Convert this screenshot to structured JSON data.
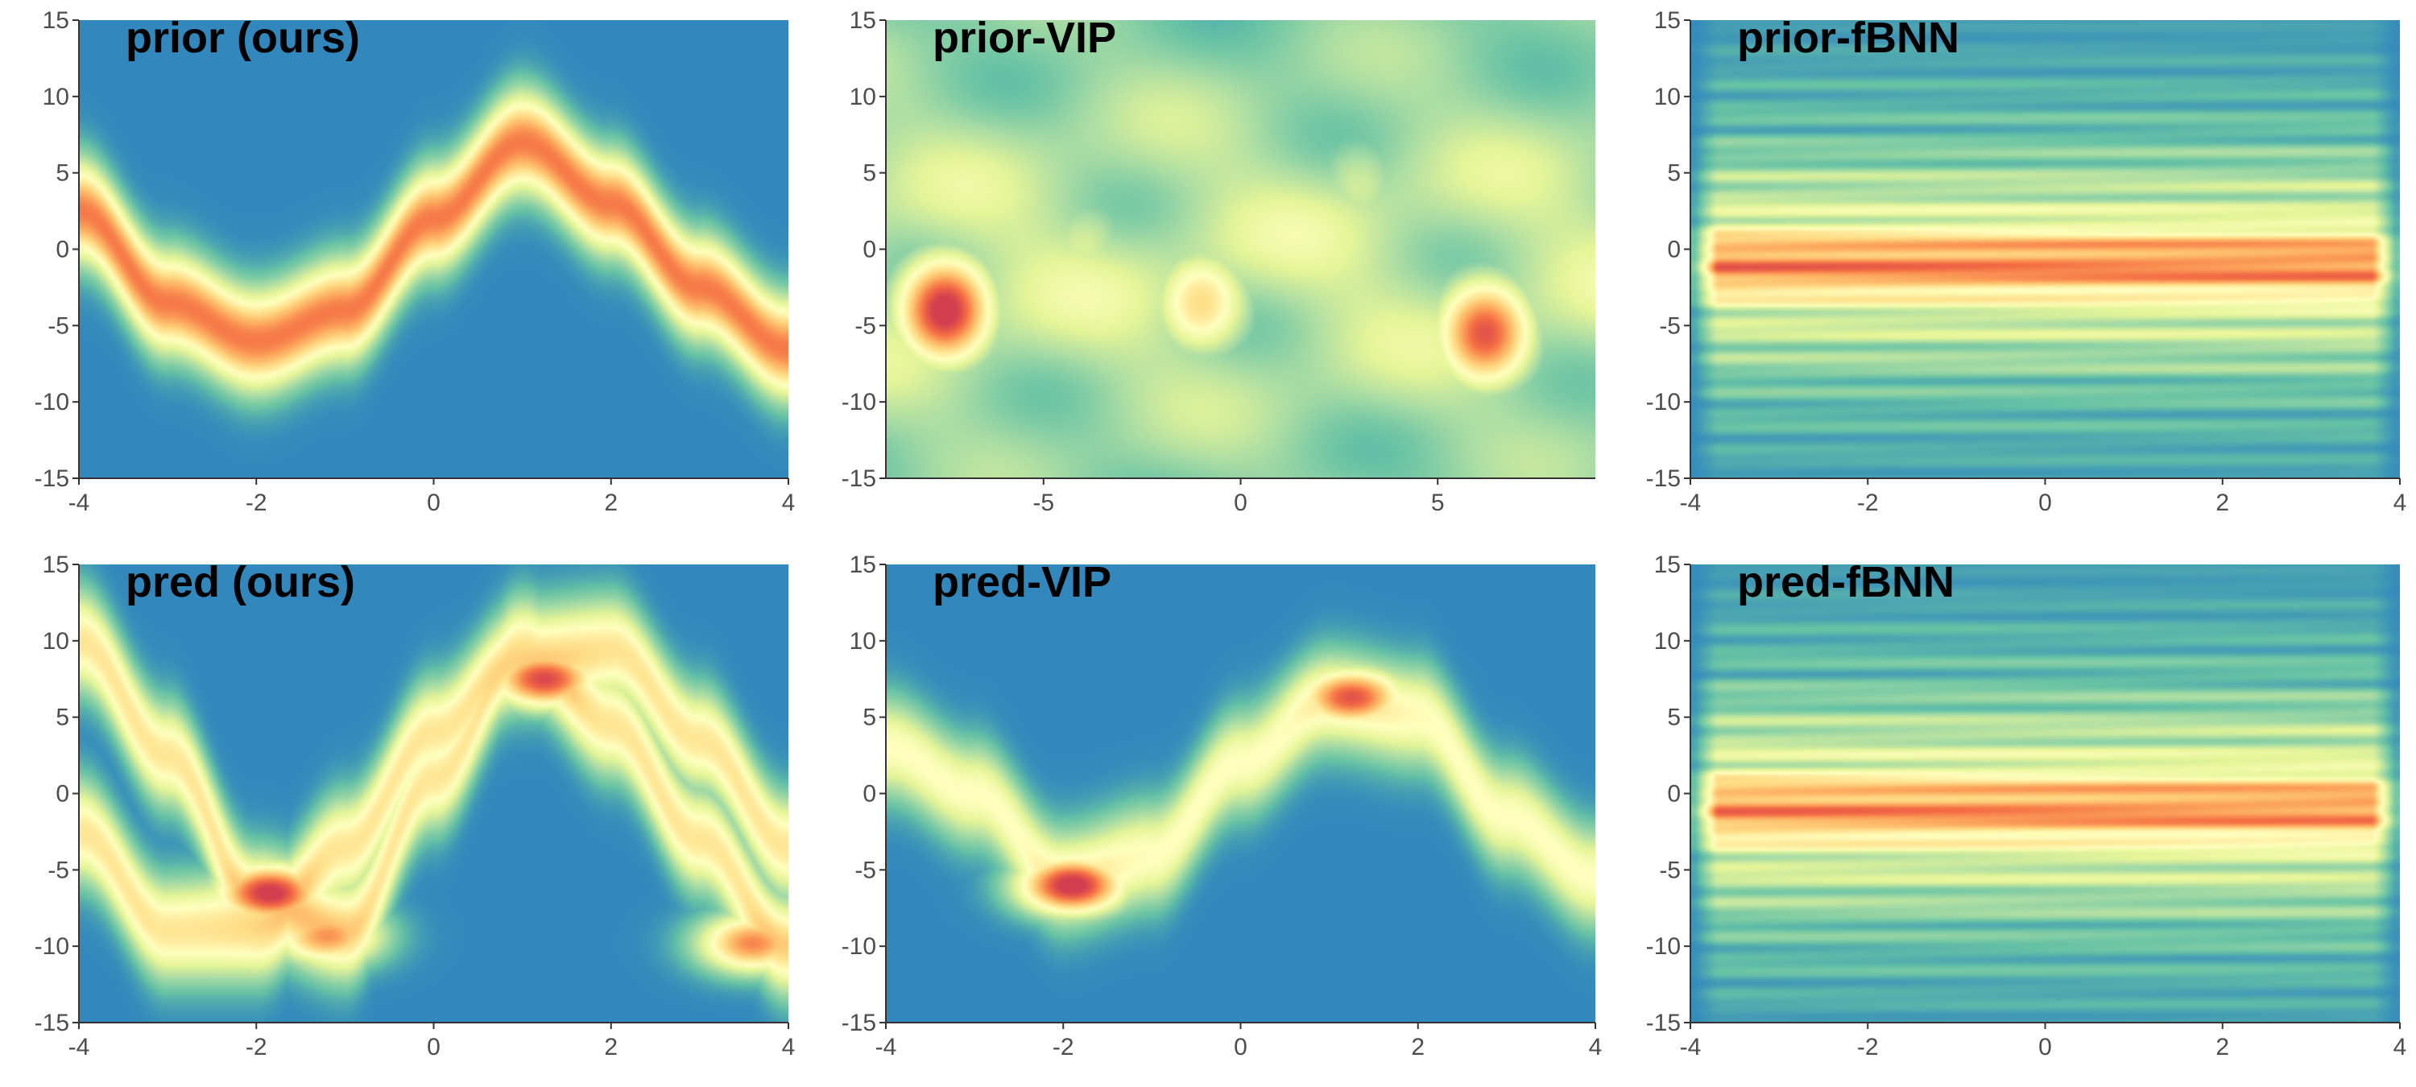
{
  "figure": {
    "colormap": [
      "#3288bd",
      "#66c2a5",
      "#abdda4",
      "#e6f598",
      "#ffffbf",
      "#fee08b",
      "#fdae61",
      "#f46d43",
      "#d53e4f"
    ],
    "background_color": "#3288bd"
  },
  "chart_data": [
    {
      "type": "heatmap",
      "title": "prior (ours)",
      "xlim": [
        -4,
        4
      ],
      "ylim": [
        -15,
        15
      ],
      "xticks": [
        -4,
        -2,
        0,
        2,
        4
      ],
      "yticks": [
        -15,
        -10,
        -5,
        0,
        5,
        10,
        15
      ],
      "density_ridges": [
        {
          "x": [
            -4,
            -3,
            -2,
            -1,
            0,
            1,
            2,
            3,
            4
          ],
          "y": [
            2.5,
            -3.5,
            -6.0,
            -4.0,
            2.0,
            7.0,
            3.0,
            -2.5,
            -6.5
          ],
          "peak": 0.85
        }
      ]
    },
    {
      "type": "heatmap",
      "title": "prior-VIP",
      "xlim": [
        -9,
        9
      ],
      "ylim": [
        -15,
        15
      ],
      "xticks": [
        -5,
        0,
        5
      ],
      "yticks": [
        -15,
        -10,
        -5,
        0,
        5,
        10,
        15
      ],
      "density_blobs": [
        {
          "x": -7.5,
          "y": -4.0,
          "peak": 0.92
        },
        {
          "x": 6.2,
          "y": -5.5,
          "peak": 0.82
        },
        {
          "x": -1.0,
          "y": -3.5,
          "peak": 0.55
        },
        {
          "x": -4.0,
          "y": 0.0,
          "peak": 0.35
        },
        {
          "x": 3.0,
          "y": 4.0,
          "peak": 0.33
        }
      ]
    },
    {
      "type": "heatmap",
      "title": "prior-fBNN",
      "xlim": [
        -4,
        4
      ],
      "ylim": [
        -15,
        15
      ],
      "xticks": [
        -4,
        -2,
        0,
        2,
        4
      ],
      "yticks": [
        -15,
        -10,
        -5,
        0,
        5,
        10,
        15
      ],
      "density_band": {
        "center": -1.0,
        "peak": 0.82
      }
    },
    {
      "type": "heatmap",
      "title": "pred (ours)",
      "xlim": [
        -4,
        4
      ],
      "ylim": [
        -15,
        15
      ],
      "xticks": [
        -4,
        -2,
        0,
        2,
        4
      ],
      "yticks": [
        -15,
        -10,
        -5,
        0,
        5,
        10,
        15
      ],
      "density_ridges": [
        {
          "x": [
            -4,
            -3,
            -2,
            -1,
            0,
            1,
            2,
            3,
            4
          ],
          "y": [
            10.0,
            2.5,
            -7.0,
            -9.0,
            1.0,
            9.5,
            4.5,
            -3.0,
            -10.0
          ],
          "peak": 0.6
        },
        {
          "x": [
            -4,
            -3,
            -2,
            -1,
            0,
            1,
            2,
            3,
            4
          ],
          "y": [
            -2.5,
            -9.0,
            -9.0,
            -3.5,
            4.0,
            9.0,
            9.5,
            3.5,
            -3.5
          ],
          "peak": 0.6
        }
      ],
      "density_blobs": [
        {
          "x": -1.85,
          "y": -6.5,
          "peak": 0.9
        },
        {
          "x": 1.25,
          "y": 7.5,
          "peak": 0.85
        },
        {
          "x": -1.2,
          "y": -9.3,
          "peak": 0.7
        },
        {
          "x": 3.6,
          "y": -9.8,
          "peak": 0.72
        }
      ]
    },
    {
      "type": "heatmap",
      "title": "pred-VIP",
      "xlim": [
        -4,
        4
      ],
      "ylim": [
        -15,
        15
      ],
      "xticks": [
        -4,
        -2,
        0,
        2,
        4
      ],
      "yticks": [
        -15,
        -10,
        -5,
        0,
        5,
        10,
        15
      ],
      "density_ridges": [
        {
          "x": [
            -4,
            -3,
            -2,
            -1,
            0,
            1,
            2,
            3,
            4
          ],
          "y": [
            3.0,
            0.0,
            -5.5,
            -4.0,
            2.0,
            6.0,
            5.0,
            -1.5,
            -5.5
          ],
          "peak": 0.5
        }
      ],
      "density_blobs": [
        {
          "x": -1.9,
          "y": -6.0,
          "peak": 0.92
        },
        {
          "x": 1.25,
          "y": 6.3,
          "peak": 0.82
        }
      ]
    },
    {
      "type": "heatmap",
      "title": "pred-fBNN",
      "xlim": [
        -4,
        4
      ],
      "ylim": [
        -15,
        15
      ],
      "xticks": [
        -4,
        -2,
        0,
        2,
        4
      ],
      "yticks": [
        -15,
        -10,
        -5,
        0,
        5,
        10,
        15
      ],
      "density_band": {
        "center": -1.0,
        "peak": 0.8
      }
    }
  ]
}
